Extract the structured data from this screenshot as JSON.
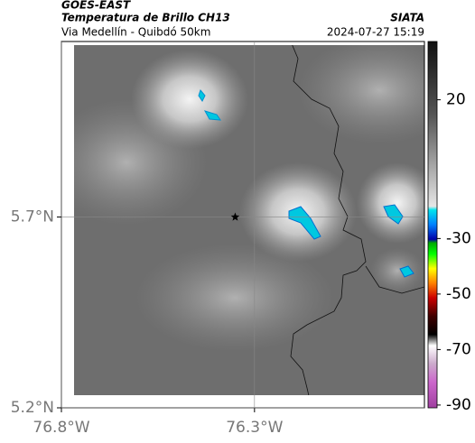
{
  "header": {
    "source": "GOES-EAST",
    "product": "Temperatura de Brillo CH13",
    "region": "Via Medellín - Quibdó 50km",
    "agency": "SIATA",
    "timestamp": "2024-07-27 15:19"
  },
  "chart_data": {
    "type": "map",
    "xlim": [
      -76.8,
      -75.86
    ],
    "ylim": [
      5.2,
      6.16
    ],
    "xticks": [
      {
        "value": -76.8,
        "label": "76.8°W"
      },
      {
        "value": -76.3,
        "label": "76.3°W"
      }
    ],
    "yticks": [
      {
        "value": 5.2,
        "label": "5.2°N"
      },
      {
        "value": 5.7,
        "label": "5.7°N"
      }
    ],
    "grid": true,
    "marker": {
      "lon": -76.35,
      "lat": 5.7
    },
    "colorbar": {
      "lim": [
        -91,
        41
      ],
      "ticks": [
        20,
        -30,
        -50,
        -70,
        -90
      ]
    }
  }
}
